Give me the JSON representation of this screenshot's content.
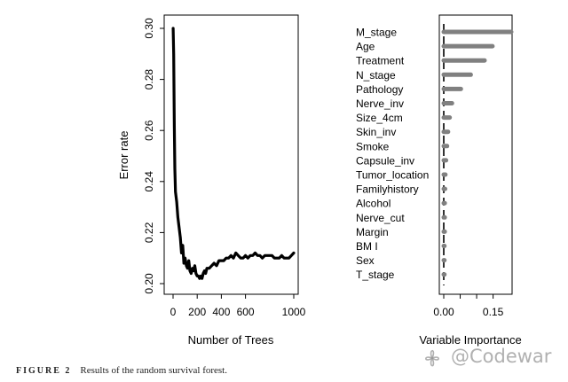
{
  "figure_caption": {
    "label": "FIGURE 2",
    "text": "Results of the random survival forest."
  },
  "watermark": {
    "text": "@Codewar"
  },
  "chart_data": [
    {
      "type": "line",
      "xlabel": "Number of Trees",
      "ylabel": "Error rate",
      "xlim": [
        0,
        1000
      ],
      "ylim": [
        0.2,
        0.3
      ],
      "xticks": [
        0,
        200,
        600,
        1000
      ],
      "xtick_labels": [
        "0",
        "200",
        "600",
        "1000"
      ],
      "extra_xtick_labels": [
        {
          "at": 400,
          "label": "400"
        }
      ],
      "yticks": [
        0.2,
        0.22,
        0.24,
        0.26,
        0.28,
        0.3
      ],
      "ytick_labels": [
        "0.20",
        "0.22",
        "0.24",
        "0.26",
        "0.28",
        "0.30"
      ],
      "x": [
        1,
        5,
        10,
        15,
        20,
        30,
        40,
        50,
        60,
        70,
        80,
        90,
        100,
        110,
        120,
        130,
        140,
        150,
        160,
        170,
        180,
        190,
        200,
        210,
        220,
        230,
        240,
        250,
        260,
        270,
        280,
        300,
        320,
        340,
        360,
        380,
        400,
        420,
        440,
        460,
        480,
        500,
        520,
        540,
        560,
        580,
        600,
        620,
        640,
        660,
        680,
        700,
        720,
        740,
        760,
        780,
        800,
        820,
        840,
        860,
        880,
        900,
        920,
        940,
        960,
        980,
        1000
      ],
      "y": [
        0.3,
        0.29,
        0.262,
        0.245,
        0.236,
        0.232,
        0.226,
        0.222,
        0.218,
        0.212,
        0.215,
        0.208,
        0.21,
        0.207,
        0.206,
        0.209,
        0.205,
        0.204,
        0.206,
        0.205,
        0.207,
        0.204,
        0.203,
        0.203,
        0.202,
        0.203,
        0.202,
        0.204,
        0.205,
        0.204,
        0.206,
        0.206,
        0.207,
        0.208,
        0.207,
        0.209,
        0.209,
        0.209,
        0.21,
        0.21,
        0.211,
        0.21,
        0.212,
        0.211,
        0.21,
        0.21,
        0.211,
        0.21,
        0.211,
        0.211,
        0.212,
        0.211,
        0.211,
        0.21,
        0.211,
        0.211,
        0.211,
        0.211,
        0.21,
        0.21,
        0.21,
        0.211,
        0.21,
        0.21,
        0.21,
        0.211,
        0.212
      ],
      "grid": false
    },
    {
      "type": "bar",
      "orientation": "horizontal",
      "xlabel": "Variable Importance",
      "xlim": [
        -0.01,
        0.21
      ],
      "xticks": [
        0.0,
        0.15
      ],
      "xtick_labels": [
        "0.00",
        "0.15"
      ],
      "categories": [
        "M_stage",
        "Age",
        "Treatment",
        "N_stage",
        "Pathology",
        "Nerve_inv",
        "Size_4cm",
        "Skin_inv",
        "Smoke",
        "Capsule_inv",
        "Tumor_location",
        "Familyhistory",
        "Alcohol",
        "Nerve_cut",
        "Margin",
        "BM I",
        "Sex",
        "T_stage"
      ],
      "values": [
        0.205,
        0.148,
        0.124,
        0.082,
        0.052,
        0.025,
        0.018,
        0.013,
        0.01,
        0.007,
        0.005,
        0.004,
        0.003,
        0.003,
        0.003,
        0.002,
        0.002,
        0.002
      ],
      "bar_color": "#808080",
      "reference_line_color": "#000000",
      "grid": false
    }
  ]
}
